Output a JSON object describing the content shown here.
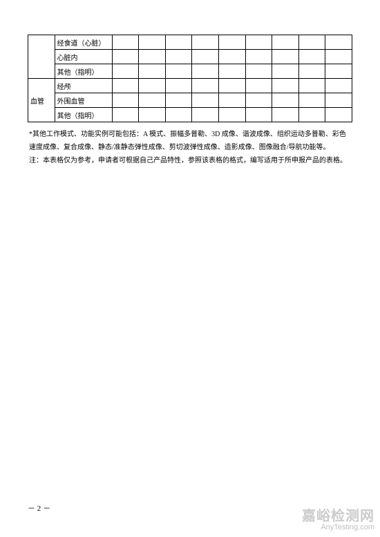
{
  "table": {
    "num_data_cols": 9,
    "section1": {
      "rows": [
        {
          "label": "经食道（心脏）"
        },
        {
          "label": "心脏内"
        },
        {
          "label": "其他（指明）"
        }
      ]
    },
    "section2": {
      "category": "血管",
      "rows": [
        {
          "label": "经颅"
        },
        {
          "label": "外围血管"
        },
        {
          "label": "其他（指明）"
        }
      ]
    }
  },
  "notes": {
    "line1": "*其他工作模式、功能实例可能包括：A 模式、振幅多普勒、3D 成像、谐波成像、组织运动多普勒、彩色速度成像、复合成像、静态/准静态弹性成像、剪切波弹性成像、造影成像、图像融合/导航功能等。",
    "line2": "注：本表格仅为参考，申请者可根据自己产品特性，参照该表格的格式，编写适用于所申报产品的表格。"
  },
  "page_number": "－ 2 －",
  "watermark": {
    "main": "嘉峪检测网",
    "sub": "AnyTesting.com"
  }
}
